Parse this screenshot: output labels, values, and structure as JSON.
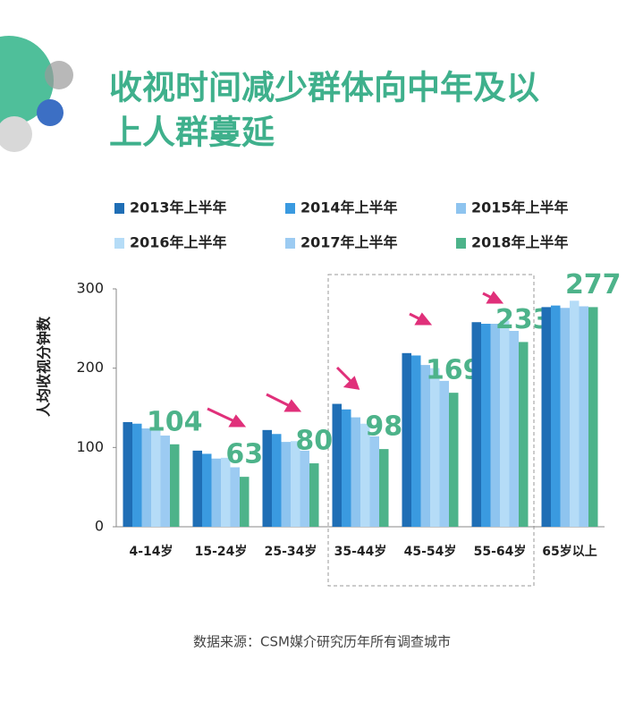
{
  "chart_data": {
    "type": "bar",
    "title": [
      "收视时间减少群体向中年及以",
      "上人群蔓延"
    ],
    "ylabel": "人均收视分钟数",
    "source": "数据来源：CSM媒介研究历年所有调查城市",
    "categories": [
      "4-14岁",
      "15-24岁",
      "25-34岁",
      "35-44岁",
      "45-54岁",
      "55-64岁",
      "65岁以上"
    ],
    "series": [
      {
        "name": "2013年上半年",
        "color": "#1f6eb5",
        "values": [
          132,
          96,
          122,
          155,
          219,
          258,
          277
        ]
      },
      {
        "name": "2014年上半年",
        "color": "#3a9ae0",
        "values": [
          130,
          92,
          117,
          148,
          216,
          256,
          279
        ]
      },
      {
        "name": "2015年上半年",
        "color": "#8ec4ef",
        "values": [
          124,
          86,
          107,
          138,
          204,
          256,
          276
        ]
      },
      {
        "name": "2016年上半年",
        "color": "#b5dcf7",
        "values": [
          125,
          87,
          108,
          130,
          200,
          260,
          285
        ]
      },
      {
        "name": "2017年上半年",
        "color": "#9ccbf2",
        "values": [
          115,
          75,
          96,
          114,
          184,
          247,
          278
        ]
      },
      {
        "name": "2018年上半年",
        "color": "#4db38a",
        "values": [
          104,
          63,
          80,
          98,
          169,
          233,
          277
        ],
        "show_labels": true
      }
    ],
    "ylim": [
      0,
      300
    ],
    "yticks": [
      0,
      100,
      200,
      300
    ],
    "grid": false
  }
}
